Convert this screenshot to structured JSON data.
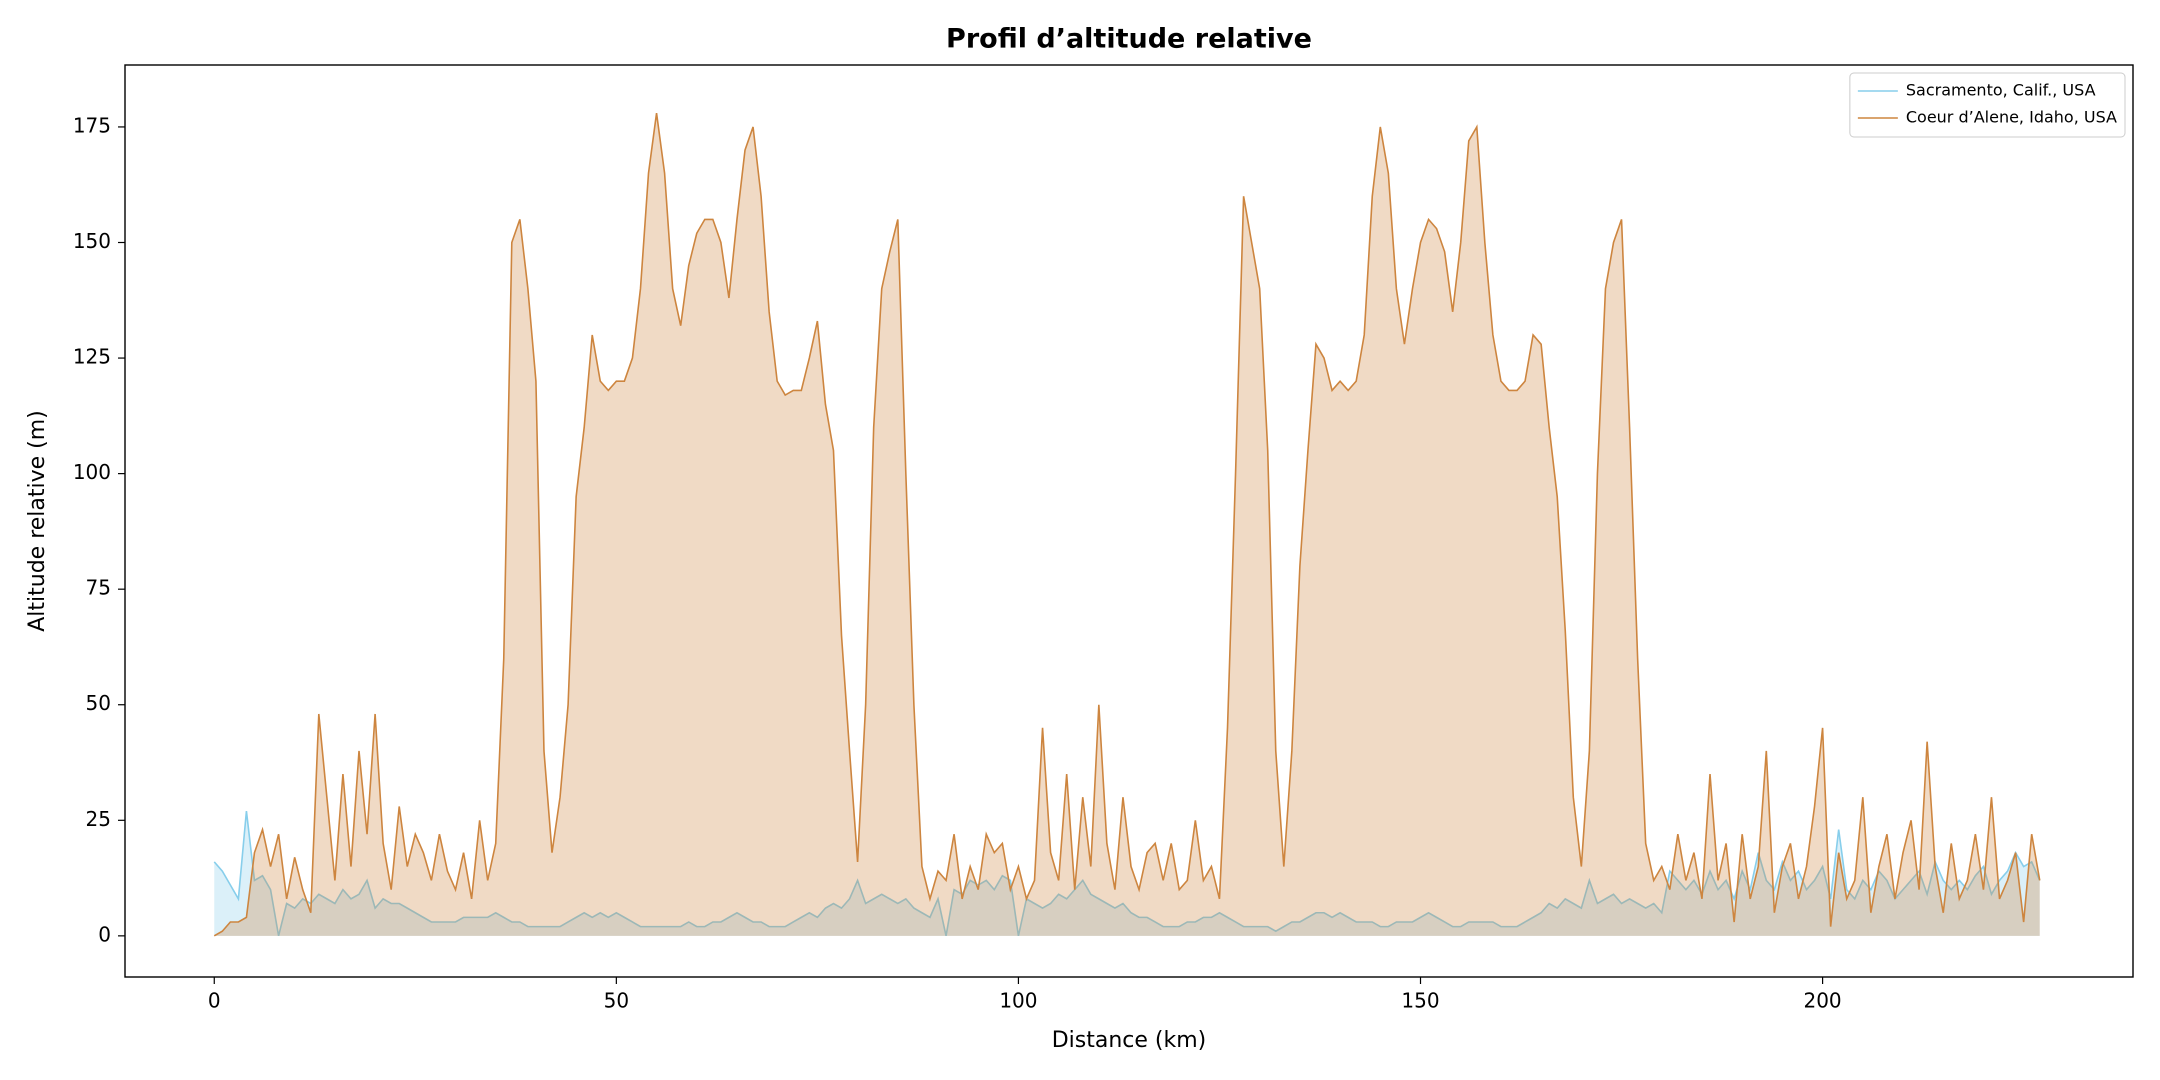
{
  "chart_data": {
    "type": "area",
    "title": "Profil d’altitude relative",
    "x_label": "Distance (km)",
    "y_label": "Altitude relative (m)",
    "xlim": [
      -11.1,
      238.6
    ],
    "ylim": [
      -8.9,
      188.4
    ],
    "xticks": [
      0,
      50,
      100,
      150,
      200
    ],
    "yticks": [
      0,
      25,
      50,
      75,
      100,
      125,
      150,
      175
    ],
    "grid": false,
    "legend": "upper right",
    "x": [
      0,
      1,
      2,
      3,
      4,
      5,
      6,
      7,
      8,
      9,
      10,
      11,
      12,
      13,
      14,
      15,
      16,
      17,
      18,
      19,
      20,
      21,
      22,
      23,
      24,
      25,
      26,
      27,
      28,
      29,
      30,
      31,
      32,
      33,
      34,
      35,
      36,
      37,
      38,
      39,
      40,
      41,
      42,
      43,
      44,
      45,
      46,
      47,
      48,
      49,
      50,
      51,
      52,
      53,
      54,
      55,
      56,
      57,
      58,
      59,
      60,
      61,
      62,
      63,
      64,
      65,
      66,
      67,
      68,
      69,
      70,
      71,
      72,
      73,
      74,
      75,
      76,
      77,
      78,
      79,
      80,
      81,
      82,
      83,
      84,
      85,
      86,
      87,
      88,
      89,
      90,
      91,
      92,
      93,
      94,
      95,
      96,
      97,
      98,
      99,
      100,
      101,
      102,
      103,
      104,
      105,
      106,
      107,
      108,
      109,
      110,
      111,
      112,
      113,
      114,
      115,
      116,
      117,
      118,
      119,
      120,
      121,
      122,
      123,
      124,
      125,
      126,
      127,
      128,
      129,
      130,
      131,
      132,
      133,
      134,
      135,
      136,
      137,
      138,
      139,
      140,
      141,
      142,
      143,
      144,
      145,
      146,
      147,
      148,
      149,
      150,
      151,
      152,
      153,
      154,
      155,
      156,
      157,
      158,
      159,
      160,
      161,
      162,
      163,
      164,
      165,
      166,
      167,
      168,
      169,
      170,
      171,
      172,
      173,
      174,
      175,
      176,
      177,
      178,
      179,
      180,
      181,
      182,
      183,
      184,
      185,
      186,
      187,
      188,
      189,
      190,
      191,
      192,
      193,
      194,
      195,
      196,
      197,
      198,
      199,
      200,
      201,
      202,
      203,
      204,
      205,
      206,
      207,
      208,
      209,
      210,
      211,
      212,
      213,
      214,
      215,
      216,
      217,
      218,
      219,
      220,
      221,
      222,
      223,
      224,
      225,
      226,
      227
    ],
    "series": [
      {
        "name": "Sacramento, Calif., USA",
        "color": "#87ceeb",
        "values": [
          16,
          14,
          11,
          8,
          27,
          12,
          13,
          10,
          0,
          7,
          6,
          8,
          7,
          9,
          8,
          7,
          10,
          8,
          9,
          12,
          6,
          8,
          7,
          7,
          6,
          5,
          4,
          3,
          3,
          3,
          3,
          4,
          4,
          4,
          4,
          5,
          4,
          3,
          3,
          2,
          2,
          2,
          2,
          2,
          3,
          4,
          5,
          4,
          5,
          4,
          5,
          4,
          3,
          2,
          2,
          2,
          2,
          2,
          2,
          3,
          2,
          2,
          3,
          3,
          4,
          5,
          4,
          3,
          3,
          2,
          2,
          2,
          3,
          4,
          5,
          4,
          6,
          7,
          6,
          8,
          12,
          7,
          8,
          9,
          8,
          7,
          8,
          6,
          5,
          4,
          8,
          0,
          10,
          9,
          12,
          11,
          12,
          10,
          13,
          12,
          0,
          8,
          7,
          6,
          7,
          9,
          8,
          10,
          12,
          9,
          8,
          7,
          6,
          7,
          5,
          4,
          4,
          3,
          2,
          2,
          2,
          3,
          3,
          4,
          4,
          5,
          4,
          3,
          2,
          2,
          2,
          2,
          1,
          2,
          3,
          3,
          4,
          5,
          5,
          4,
          5,
          4,
          3,
          3,
          3,
          2,
          2,
          3,
          3,
          3,
          4,
          5,
          4,
          3,
          2,
          2,
          3,
          3,
          3,
          3,
          2,
          2,
          2,
          3,
          4,
          5,
          7,
          6,
          8,
          7,
          6,
          12,
          7,
          8,
          9,
          7,
          8,
          7,
          6,
          7,
          5,
          14,
          12,
          10,
          12,
          9,
          14,
          10,
          12,
          8,
          14,
          10,
          18,
          12,
          10,
          16,
          12,
          14,
          10,
          12,
          15,
          8,
          23,
          10,
          8,
          12,
          10,
          14,
          12,
          8,
          10,
          12,
          14,
          9,
          16,
          12,
          10,
          12,
          10,
          13,
          15,
          9,
          12,
          14,
          18,
          15,
          16,
          12
        ]
      },
      {
        "name": "Coeur d’Alene, Idaho, USA",
        "color": "#cd853f",
        "values": [
          0,
          1,
          3,
          3,
          4,
          18,
          23,
          15,
          22,
          8,
          17,
          10,
          5,
          48,
          30,
          12,
          35,
          15,
          40,
          22,
          48,
          20,
          10,
          28,
          15,
          22,
          18,
          12,
          22,
          14,
          10,
          18,
          8,
          25,
          12,
          20,
          60,
          150,
          155,
          140,
          120,
          40,
          18,
          30,
          50,
          95,
          110,
          130,
          120,
          118,
          120,
          120,
          125,
          140,
          165,
          178,
          165,
          140,
          132,
          145,
          152,
          155,
          155,
          150,
          138,
          155,
          170,
          175,
          160,
          135,
          120,
          117,
          118,
          118,
          125,
          133,
          115,
          105,
          65,
          40,
          16,
          50,
          110,
          140,
          148,
          155,
          100,
          50,
          15,
          8,
          14,
          12,
          22,
          8,
          15,
          10,
          22,
          18,
          20,
          10,
          15,
          8,
          12,
          45,
          18,
          12,
          35,
          10,
          30,
          15,
          50,
          20,
          10,
          30,
          15,
          10,
          18,
          20,
          12,
          20,
          10,
          12,
          25,
          12,
          15,
          8,
          45,
          100,
          160,
          150,
          140,
          105,
          40,
          15,
          40,
          80,
          105,
          128,
          125,
          118,
          120,
          118,
          120,
          130,
          160,
          175,
          165,
          140,
          128,
          140,
          150,
          155,
          153,
          148,
          135,
          150,
          172,
          175,
          150,
          130,
          120,
          118,
          118,
          120,
          130,
          128,
          110,
          95,
          66,
          30,
          15,
          40,
          100,
          140,
          150,
          155,
          110,
          60,
          20,
          12,
          15,
          10,
          22,
          12,
          18,
          8,
          35,
          12,
          20,
          3,
          22,
          8,
          15,
          40,
          5,
          15,
          20,
          8,
          15,
          28,
          45,
          2,
          18,
          8,
          12,
          30,
          5,
          15,
          22,
          8,
          18,
          25,
          10,
          42,
          15,
          5,
          20,
          8,
          12,
          22,
          10,
          30,
          8,
          12,
          18,
          3,
          22,
          12
        ]
      }
    ]
  }
}
